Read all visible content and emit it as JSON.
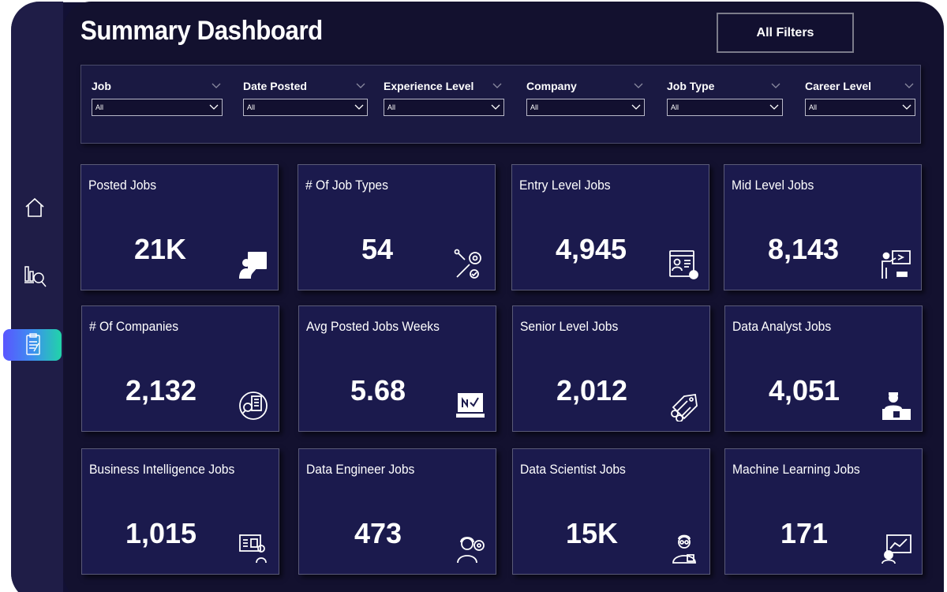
{
  "header": {
    "title": "Summary Dashboard",
    "all_filters_label": "All Filters"
  },
  "sidebar": {
    "items": [
      {
        "icon": "home-icon",
        "active": false
      },
      {
        "icon": "analytics-icon",
        "active": false
      },
      {
        "icon": "report-icon",
        "active": true
      }
    ]
  },
  "filters": [
    {
      "label": "Job",
      "value": "All"
    },
    {
      "label": "Date Posted",
      "value": "All"
    },
    {
      "label": "Experience Level",
      "value": "All"
    },
    {
      "label": "Company",
      "value": "All"
    },
    {
      "label": "Job Type",
      "value": "All"
    },
    {
      "label": "Career Level",
      "value": "All"
    }
  ],
  "cards": [
    {
      "title": "Posted Jobs",
      "value": "21K",
      "icon": "presenter-icon"
    },
    {
      "title": "# Of Job Types",
      "value": "54",
      "icon": "gear-tools-icon"
    },
    {
      "title": "Entry Level Jobs",
      "value": "4,945",
      "icon": "resume-icon"
    },
    {
      "title": "Mid Level Jobs",
      "value": "8,143",
      "icon": "teacher-board-icon"
    },
    {
      "title": "# Of Companies",
      "value": "2,132",
      "icon": "company-search-icon"
    },
    {
      "title": "Avg Posted Jobs Weeks",
      "value": "5.68",
      "icon": "laptop-chart-icon"
    },
    {
      "title": "Senior Level Jobs",
      "value": "2,012",
      "icon": "tag-scissors-icon"
    },
    {
      "title": "Data Analyst Jobs",
      "value": "4,051",
      "icon": "analyst-desk-icon"
    },
    {
      "title": "Business Intelligence Jobs",
      "value": "1,015",
      "icon": "presentation-icon"
    },
    {
      "title": "Data Engineer Jobs",
      "value": "473",
      "icon": "engineer-gear-icon"
    },
    {
      "title": "Data Scientist Jobs",
      "value": "15K",
      "icon": "scientist-icon"
    },
    {
      "title": "Machine Learning Jobs",
      "value": "171",
      "icon": "ml-chart-icon"
    }
  ],
  "colors": {
    "background": "#13112f",
    "card": "#1b1a4d",
    "accent_gradient": [
      "#5a55ff",
      "#21d4a8"
    ]
  }
}
